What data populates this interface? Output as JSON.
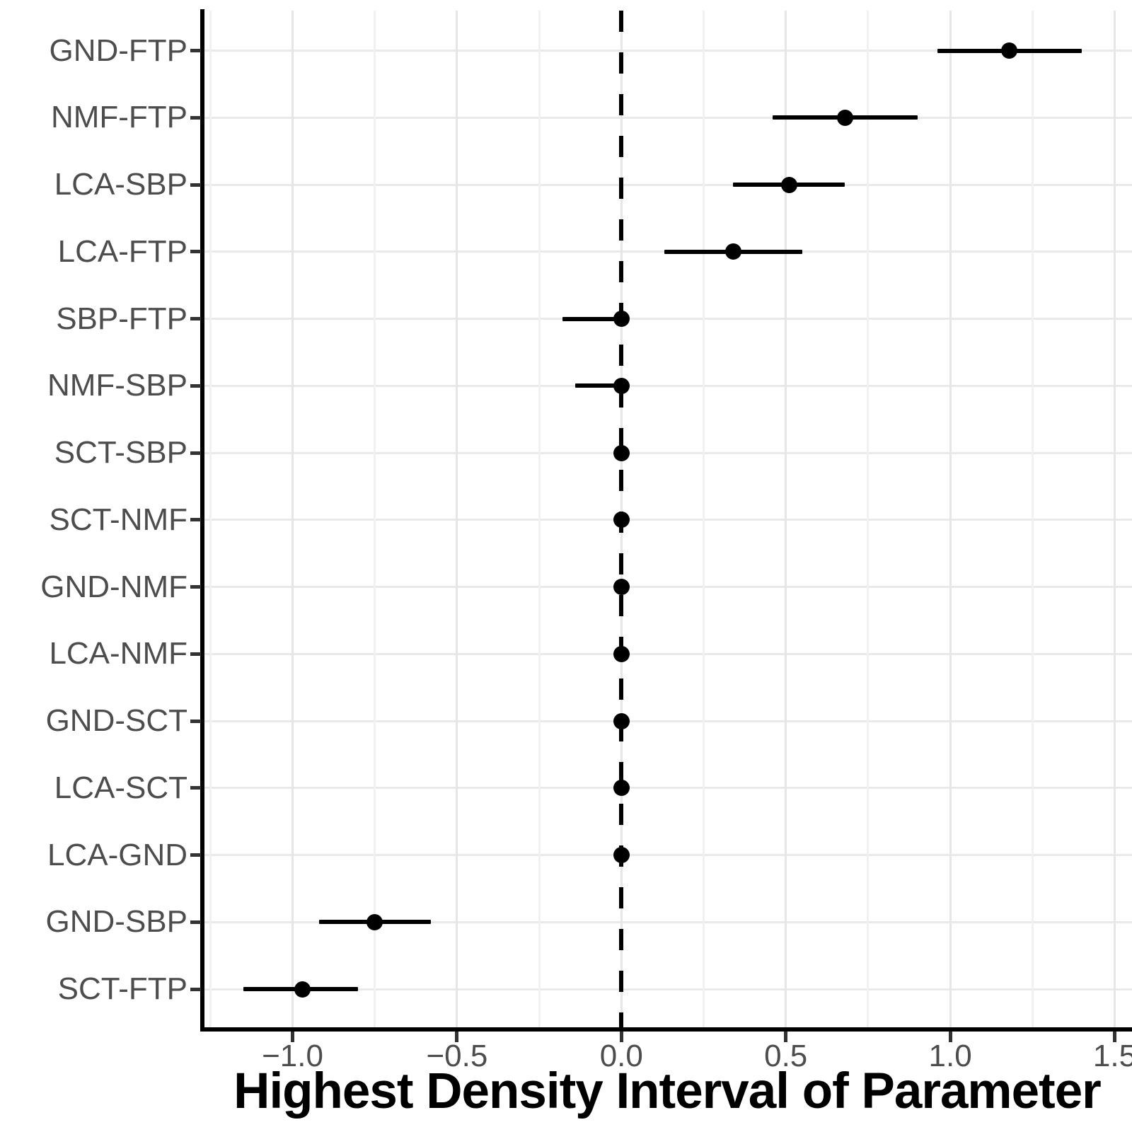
{
  "chart_data": {
    "type": "scatter",
    "subtype": "forest-plot-pointrange",
    "title": "",
    "xlabel": "Highest Density Interval of Parameter",
    "ylabel": "",
    "xlim": [
      -1.274,
      1.553
    ],
    "grid": "on",
    "legend": "none",
    "reference_line": {
      "x": 0.0,
      "style": "dashed",
      "color": "#000000"
    },
    "x_ticks": [
      {
        "value": -1.0,
        "label": "−1.0"
      },
      {
        "value": -0.5,
        "label": "−0.5"
      },
      {
        "value": 0.0,
        "label": "0.0"
      },
      {
        "value": 0.5,
        "label": "0.5"
      },
      {
        "value": 1.0,
        "label": "1.0"
      },
      {
        "value": 1.5,
        "label": "1.5"
      }
    ],
    "x_minor_gridlines": [
      -1.25,
      -0.75,
      -0.25,
      0.25,
      0.75,
      1.25
    ],
    "categories": [
      "GND-FTP",
      "NMF-FTP",
      "LCA-SBP",
      "LCA-FTP",
      "SBP-FTP",
      "NMF-SBP",
      "SCT-SBP",
      "SCT-NMF",
      "GND-NMF",
      "LCA-NMF",
      "GND-SCT",
      "LCA-SCT",
      "LCA-GND",
      "GND-SBP",
      "SCT-FTP"
    ],
    "series": [
      {
        "name": "Highest Density Interval",
        "marker": "filled-circle",
        "color": "#000000",
        "points": [
          {
            "label": "GND-FTP",
            "value": 1.18,
            "lo": 0.96,
            "hi": 1.4
          },
          {
            "label": "NMF-FTP",
            "value": 0.68,
            "lo": 0.46,
            "hi": 0.9
          },
          {
            "label": "LCA-SBP",
            "value": 0.51,
            "lo": 0.34,
            "hi": 0.68
          },
          {
            "label": "LCA-FTP",
            "value": 0.34,
            "lo": 0.13,
            "hi": 0.55
          },
          {
            "label": "SBP-FTP",
            "value": 0.0,
            "lo": -0.18,
            "hi": 0.01
          },
          {
            "label": "NMF-SBP",
            "value": 0.0,
            "lo": -0.14,
            "hi": 0.01
          },
          {
            "label": "SCT-SBP",
            "value": 0.0,
            "lo": -0.01,
            "hi": 0.01
          },
          {
            "label": "SCT-NMF",
            "value": 0.0,
            "lo": -0.01,
            "hi": 0.01
          },
          {
            "label": "GND-NMF",
            "value": 0.0,
            "lo": -0.01,
            "hi": 0.01
          },
          {
            "label": "LCA-NMF",
            "value": 0.0,
            "lo": -0.01,
            "hi": 0.01
          },
          {
            "label": "GND-SCT",
            "value": 0.0,
            "lo": -0.01,
            "hi": 0.01
          },
          {
            "label": "LCA-SCT",
            "value": 0.0,
            "lo": -0.01,
            "hi": 0.01
          },
          {
            "label": "LCA-GND",
            "value": 0.0,
            "lo": -0.01,
            "hi": 0.01
          },
          {
            "label": "GND-SBP",
            "value": -0.75,
            "lo": -0.92,
            "hi": -0.58
          },
          {
            "label": "SCT-FTP",
            "value": -0.97,
            "lo": -1.15,
            "hi": -0.8
          }
        ]
      }
    ],
    "colors": {
      "point": "#000000",
      "error_bar": "#000000",
      "axis_line": "#000000",
      "tick_mark": "#333333",
      "tick_label": "#4d4d4d",
      "grid_major": "#e6e6e6",
      "grid_minor": "#f1f1f1",
      "background": "#ffffff"
    }
  }
}
